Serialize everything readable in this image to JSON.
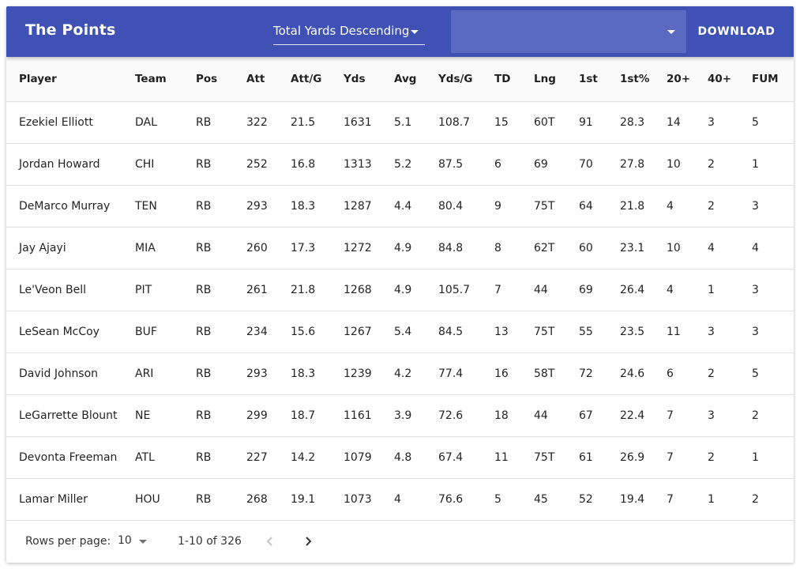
{
  "appbar": {
    "title": "The Points",
    "sort_value": "Total Yards Descending",
    "filter_value": "",
    "download_label": "DOWNLOAD"
  },
  "table": {
    "columns": [
      "Player",
      "Team",
      "Pos",
      "Att",
      "Att/G",
      "Yds",
      "Avg",
      "Yds/G",
      "TD",
      "Lng",
      "1st",
      "1st%",
      "20+",
      "40+",
      "FUM"
    ],
    "rows": [
      [
        "Ezekiel Elliott",
        "DAL",
        "RB",
        "322",
        "21.5",
        "1631",
        "5.1",
        "108.7",
        "15",
        "60T",
        "91",
        "28.3",
        "14",
        "3",
        "5"
      ],
      [
        "Jordan Howard",
        "CHI",
        "RB",
        "252",
        "16.8",
        "1313",
        "5.2",
        "87.5",
        "6",
        "69",
        "70",
        "27.8",
        "10",
        "2",
        "1"
      ],
      [
        "DeMarco Murray",
        "TEN",
        "RB",
        "293",
        "18.3",
        "1287",
        "4.4",
        "80.4",
        "9",
        "75T",
        "64",
        "21.8",
        "4",
        "2",
        "3"
      ],
      [
        "Jay Ajayi",
        "MIA",
        "RB",
        "260",
        "17.3",
        "1272",
        "4.9",
        "84.8",
        "8",
        "62T",
        "60",
        "23.1",
        "10",
        "4",
        "4"
      ],
      [
        "Le'Veon Bell",
        "PIT",
        "RB",
        "261",
        "21.8",
        "1268",
        "4.9",
        "105.7",
        "7",
        "44",
        "69",
        "26.4",
        "4",
        "1",
        "3"
      ],
      [
        "LeSean McCoy",
        "BUF",
        "RB",
        "234",
        "15.6",
        "1267",
        "5.4",
        "84.5",
        "13",
        "75T",
        "55",
        "23.5",
        "11",
        "3",
        "3"
      ],
      [
        "David Johnson",
        "ARI",
        "RB",
        "293",
        "18.3",
        "1239",
        "4.2",
        "77.4",
        "16",
        "58T",
        "72",
        "24.6",
        "6",
        "2",
        "5"
      ],
      [
        "LeGarrette Blount",
        "NE",
        "RB",
        "299",
        "18.7",
        "1161",
        "3.9",
        "72.6",
        "18",
        "44",
        "67",
        "22.4",
        "7",
        "3",
        "2"
      ],
      [
        "Devonta Freeman",
        "ATL",
        "RB",
        "227",
        "14.2",
        "1079",
        "4.8",
        "67.4",
        "11",
        "75T",
        "61",
        "26.9",
        "7",
        "2",
        "1"
      ],
      [
        "Lamar Miller",
        "HOU",
        "RB",
        "268",
        "19.1",
        "1073",
        "4",
        "76.6",
        "5",
        "45",
        "52",
        "19.4",
        "7",
        "1",
        "2"
      ]
    ]
  },
  "footer": {
    "rows_per_page_label": "Rows per page:",
    "rows_per_page_value": "10",
    "range_text": "1-10 of 326"
  },
  "icons": {
    "sort_caret": "arrow-drop-down-icon",
    "filter_caret": "arrow-drop-down-icon",
    "rows_caret": "arrow-drop-down-icon",
    "prev": "chevron-left-icon",
    "next": "chevron-right-icon"
  },
  "colors": {
    "appbar": "#3f51b5",
    "filter_field": "#5c6bc0"
  }
}
